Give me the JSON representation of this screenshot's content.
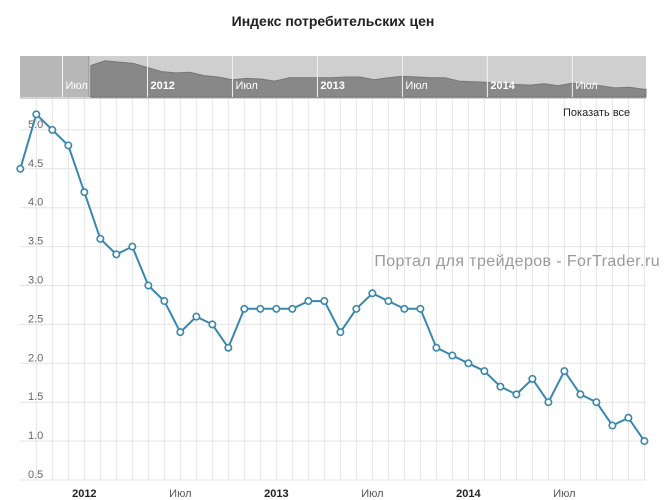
{
  "chart_data": {
    "type": "line",
    "title": "Индекс потребительских цен",
    "show_all_label": "Показать все",
    "watermark": "Портал для трейдеров - ForTrader.ru",
    "ylim": [
      0.5,
      5.5
    ],
    "y_ticks": [
      {
        "value": 0.5,
        "label": "0.5"
      },
      {
        "value": 1.0,
        "label": "1.0"
      },
      {
        "value": 1.5,
        "label": "1.5"
      },
      {
        "value": 2.0,
        "label": "2.0"
      },
      {
        "value": 2.5,
        "label": "2.5"
      },
      {
        "value": 3.0,
        "label": "3.0"
      },
      {
        "value": 3.5,
        "label": "3.5"
      },
      {
        "value": 4.0,
        "label": "4.0"
      },
      {
        "value": 4.5,
        "label": "4.5"
      },
      {
        "value": 5.0,
        "label": "5.0"
      }
    ],
    "x_ticks": [
      {
        "date": "2012-01",
        "label": "2012",
        "bold": true
      },
      {
        "date": "2012-07",
        "label": "Июл",
        "bold": false
      },
      {
        "date": "2013-01",
        "label": "2013",
        "bold": true
      },
      {
        "date": "2013-07",
        "label": "Июл",
        "bold": false
      },
      {
        "date": "2014-01",
        "label": "2014",
        "bold": true
      },
      {
        "date": "2014-07",
        "label": "Июл",
        "bold": false
      }
    ],
    "navigator_ticks": [
      {
        "date": "2011-07",
        "label": "Июл",
        "bold": false
      },
      {
        "date": "2012-01",
        "label": "2012",
        "bold": true
      },
      {
        "date": "2012-07",
        "label": "Июл",
        "bold": false
      },
      {
        "date": "2013-01",
        "label": "2013",
        "bold": true
      },
      {
        "date": "2013-07",
        "label": "Июл",
        "bold": false
      },
      {
        "date": "2014-01",
        "label": "2014",
        "bold": true
      },
      {
        "date": "2014-07",
        "label": "Июл",
        "bold": false
      }
    ],
    "navigator_selected_from": "2011-09",
    "colors": {
      "line": "#3a87ad",
      "marker_fill": "#ffffff",
      "grid": "#e4e4e4",
      "navigator_area": "#888888",
      "navigator_bg": "#cfcfcf",
      "navigator_unselected": "#b4b4b4"
    },
    "series": [
      {
        "x": [
          "2011-09",
          "2011-10",
          "2011-11",
          "2011-12",
          "2012-01",
          "2012-02",
          "2012-03",
          "2012-04",
          "2012-05",
          "2012-06",
          "2012-07",
          "2012-08",
          "2012-09",
          "2012-10",
          "2012-11",
          "2012-12",
          "2013-01",
          "2013-02",
          "2013-03",
          "2013-04",
          "2013-05",
          "2013-06",
          "2013-07",
          "2013-08",
          "2013-09",
          "2013-10",
          "2013-11",
          "2013-12",
          "2014-01",
          "2014-02",
          "2014-03",
          "2014-04",
          "2014-05",
          "2014-06",
          "2014-07",
          "2014-08",
          "2014-09",
          "2014-10",
          "2014-11",
          "2014-12"
        ],
        "values": [
          4.5,
          5.2,
          5.0,
          4.8,
          4.2,
          3.6,
          3.4,
          3.5,
          3.0,
          2.8,
          2.4,
          2.6,
          2.5,
          2.2,
          2.7,
          2.7,
          2.7,
          2.7,
          2.8,
          2.8,
          2.4,
          2.7,
          2.9,
          2.8,
          2.7,
          2.7,
          2.2,
          2.1,
          2.0,
          1.9,
          1.7,
          1.6,
          1.8,
          1.5,
          1.9,
          1.6,
          1.5,
          1.2,
          1.3,
          1.0
        ]
      }
    ]
  }
}
